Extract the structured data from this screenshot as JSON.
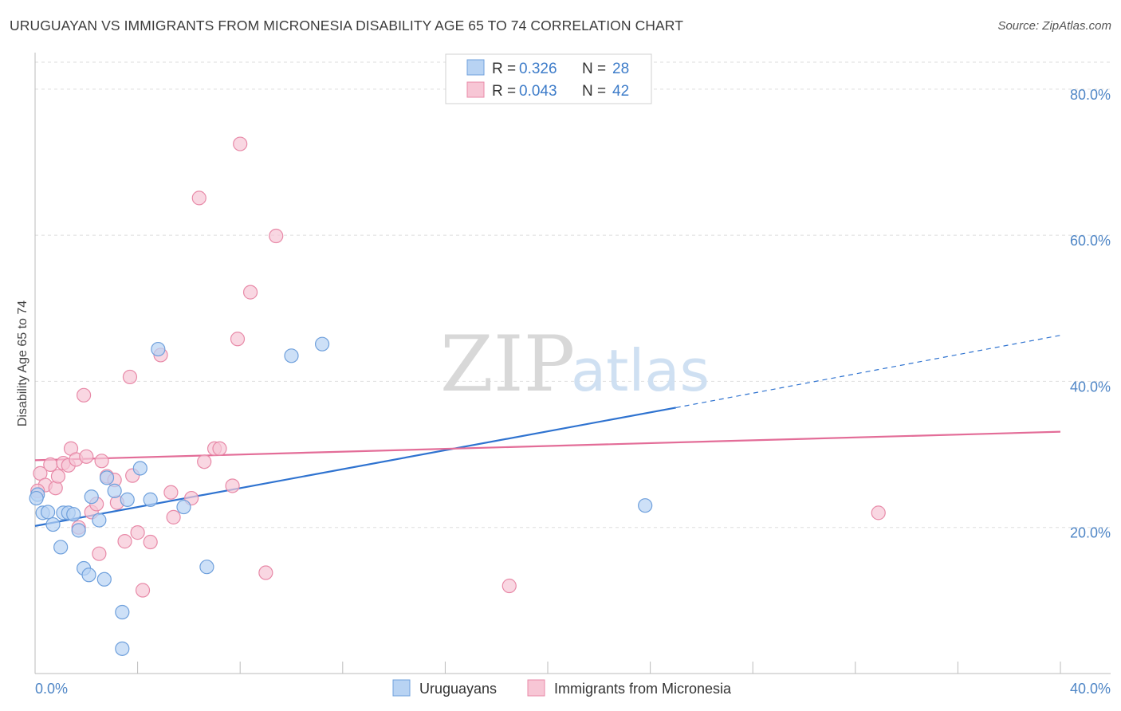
{
  "header": {
    "title": "URUGUAYAN VS IMMIGRANTS FROM MICRONESIA DISABILITY AGE 65 TO 74 CORRELATION CHART",
    "source": "Source: ZipAtlas.com"
  },
  "watermark": {
    "zip": "ZIP",
    "atlas": "atlas"
  },
  "legend": {
    "r_label": "R =",
    "n_label": "N =",
    "entries": [
      {
        "r": "0.326",
        "n": "28"
      },
      {
        "r": "0.043",
        "n": "42"
      }
    ]
  },
  "colors": {
    "series1_fill": "#b8d3f3",
    "series1_stroke": "#6fa0dc",
    "series1_line": "#2f73d0",
    "series2_fill": "#f7c6d5",
    "series2_stroke": "#e88aa8",
    "series2_line": "#e36d98",
    "grid": "#dddddd",
    "tick_label": "#4f86c6"
  },
  "chart_data": {
    "type": "scatter",
    "ylabel": "Disability Age 65 to 74",
    "xlim": [
      0,
      40
    ],
    "ylim": [
      0,
      85
    ],
    "x_tick_labels": [
      {
        "value": 0,
        "label": "0.0%"
      },
      {
        "value": 40,
        "label": "40.0%"
      }
    ],
    "y_tick_labels": [
      {
        "value": 20,
        "label": "20.0%"
      },
      {
        "value": 40,
        "label": "40.0%"
      },
      {
        "value": 60,
        "label": "60.0%"
      },
      {
        "value": 80,
        "label": "80.0%"
      }
    ],
    "grid": true,
    "legend_position": "top-center",
    "series": [
      {
        "name": "Uruguayans",
        "r": 0.326,
        "n": 28,
        "trend": {
          "x0": 0,
          "y0": 20.2,
          "x1": 25,
          "y1": 36.4,
          "x_dash_end": 40,
          "y_dash_end": 46.3
        },
        "points": [
          [
            0.1,
            24.5
          ],
          [
            0.3,
            22.0
          ],
          [
            0.5,
            22.1
          ],
          [
            0.7,
            20.4
          ],
          [
            1.0,
            17.3
          ],
          [
            1.1,
            22.0
          ],
          [
            1.3,
            22.0
          ],
          [
            1.5,
            21.8
          ],
          [
            1.7,
            19.6
          ],
          [
            1.9,
            14.4
          ],
          [
            2.1,
            13.5
          ],
          [
            2.2,
            24.2
          ],
          [
            2.5,
            21.0
          ],
          [
            2.7,
            12.9
          ],
          [
            2.8,
            26.8
          ],
          [
            3.1,
            25.0
          ],
          [
            3.4,
            3.4
          ],
          [
            3.4,
            8.4
          ],
          [
            3.6,
            23.8
          ],
          [
            4.1,
            28.1
          ],
          [
            4.5,
            23.8
          ],
          [
            4.8,
            44.4
          ],
          [
            5.8,
            22.8
          ],
          [
            6.7,
            14.6
          ],
          [
            10.0,
            43.5
          ],
          [
            11.2,
            45.1
          ],
          [
            23.8,
            23.0
          ],
          [
            0.05,
            24.0
          ]
        ]
      },
      {
        "name": "Immigrants from Micronesia",
        "r": 0.043,
        "n": 42,
        "trend": {
          "x0": 0,
          "y0": 29.2,
          "x1": 40,
          "y1": 33.1
        },
        "points": [
          [
            0.2,
            27.4
          ],
          [
            0.4,
            25.8
          ],
          [
            0.6,
            28.6
          ],
          [
            0.8,
            25.4
          ],
          [
            0.9,
            27.0
          ],
          [
            1.1,
            28.8
          ],
          [
            1.3,
            28.5
          ],
          [
            1.4,
            30.8
          ],
          [
            1.6,
            29.3
          ],
          [
            1.9,
            38.1
          ],
          [
            2.0,
            29.7
          ],
          [
            2.2,
            22.1
          ],
          [
            2.4,
            23.2
          ],
          [
            2.5,
            16.4
          ],
          [
            2.6,
            29.1
          ],
          [
            2.8,
            27.0
          ],
          [
            3.1,
            26.5
          ],
          [
            3.2,
            23.4
          ],
          [
            3.5,
            18.1
          ],
          [
            3.7,
            40.6
          ],
          [
            3.8,
            27.1
          ],
          [
            4.0,
            19.3
          ],
          [
            4.2,
            11.4
          ],
          [
            4.5,
            18.0
          ],
          [
            4.9,
            43.6
          ],
          [
            5.3,
            24.8
          ],
          [
            5.4,
            21.4
          ],
          [
            6.1,
            24.0
          ],
          [
            6.4,
            65.1
          ],
          [
            6.6,
            29.0
          ],
          [
            7.0,
            30.8
          ],
          [
            7.2,
            30.8
          ],
          [
            7.7,
            25.7
          ],
          [
            7.9,
            45.8
          ],
          [
            8.0,
            72.5
          ],
          [
            8.4,
            52.2
          ],
          [
            9.0,
            13.8
          ],
          [
            9.4,
            59.9
          ],
          [
            18.5,
            12.0
          ],
          [
            32.9,
            22.0
          ],
          [
            0.1,
            25.0
          ],
          [
            1.7,
            20.0
          ]
        ]
      }
    ]
  }
}
